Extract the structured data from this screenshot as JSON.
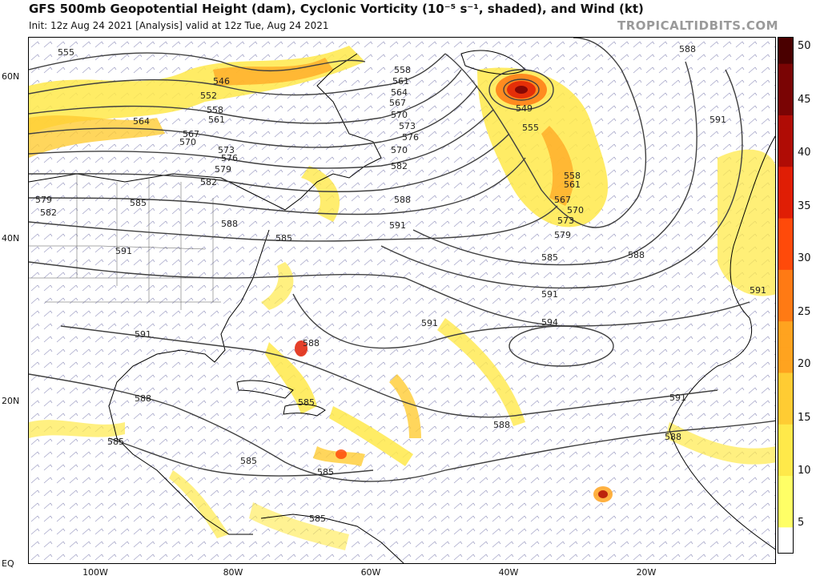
{
  "header": {
    "title": "GFS 500mb Geopotential Height (dam), Cyclonic Vorticity (10⁻⁵ s⁻¹, shaded), and Wind (kt)",
    "subtitle": "Init: 12z Aug 24 2021   [Analysis]   valid at 12z Tue, Aug 24 2021",
    "watermark": "TROPICALTIDBITS.COM"
  },
  "map": {
    "lat_labels": [
      "60N",
      "40N",
      "20N",
      "EQ"
    ],
    "lon_labels": [
      "100W",
      "80W",
      "60W",
      "40W",
      "20W"
    ],
    "contour_color": "#404040",
    "coast_color": "#000000",
    "wind_barb_color": "#3b3b8f",
    "contour_labels": [
      {
        "text": "555",
        "region": "northwest"
      },
      {
        "text": "546",
        "region": "northwest"
      },
      {
        "text": "552",
        "region": "northwest"
      },
      {
        "text": "558",
        "region": "northwest"
      },
      {
        "text": "561",
        "region": "northwest"
      },
      {
        "text": "564",
        "region": "northwest"
      },
      {
        "text": "567",
        "region": "northwest"
      },
      {
        "text": "570",
        "region": "northwest"
      },
      {
        "text": "573",
        "region": "northwest"
      },
      {
        "text": "576",
        "region": "northwest"
      },
      {
        "text": "579",
        "region": "northwest"
      },
      {
        "text": "582",
        "region": "northwest"
      },
      {
        "text": "585",
        "region": "north-central US"
      },
      {
        "text": "588",
        "region": "Great Lakes"
      },
      {
        "text": "579",
        "region": "west"
      },
      {
        "text": "582",
        "region": "west"
      },
      {
        "text": "591",
        "region": "Gulf"
      },
      {
        "text": "585",
        "region": "Mid-Atlantic"
      },
      {
        "text": "558",
        "region": "Newfoundland"
      },
      {
        "text": "561",
        "region": "Newfoundland"
      },
      {
        "text": "564",
        "region": "Newfoundland"
      },
      {
        "text": "567",
        "region": "Newfoundland"
      },
      {
        "text": "570",
        "region": "Newfoundland"
      },
      {
        "text": "573",
        "region": "Newfoundland"
      },
      {
        "text": "576",
        "region": "Newfoundland"
      },
      {
        "text": "570",
        "region": "Newfoundland"
      },
      {
        "text": "582",
        "region": "Newfoundland"
      },
      {
        "text": "588",
        "region": "central Atlantic"
      },
      {
        "text": "591",
        "region": "central Atlantic"
      },
      {
        "text": "549",
        "region": "low center"
      },
      {
        "text": "555",
        "region": "low"
      },
      {
        "text": "558",
        "region": "low trough"
      },
      {
        "text": "561",
        "region": "low trough"
      },
      {
        "text": "567",
        "region": "low trough"
      },
      {
        "text": "570",
        "region": "low trough"
      },
      {
        "text": "573",
        "region": "low trough"
      },
      {
        "text": "579",
        "region": "low trough"
      },
      {
        "text": "585",
        "region": "low trough"
      },
      {
        "text": "588",
        "region": "east Atlantic"
      },
      {
        "text": "591",
        "region": "subtropical ridge"
      },
      {
        "text": "591",
        "region": "subtropical ridge"
      },
      {
        "text": "594",
        "region": "ridge center"
      },
      {
        "text": "588",
        "region": "Bahamas"
      },
      {
        "text": "585",
        "region": "Hispaniola"
      },
      {
        "text": "588",
        "region": "tropical Atlantic"
      },
      {
        "text": "588",
        "region": "Africa"
      },
      {
        "text": "591",
        "region": "Africa"
      },
      {
        "text": "591",
        "region": "Iberia"
      },
      {
        "text": "591",
        "region": "Europe"
      },
      {
        "text": "588",
        "region": "northeast"
      },
      {
        "text": "591",
        "region": "Mexico"
      },
      {
        "text": "588",
        "region": "Gulf of Mexico"
      },
      {
        "text": "585",
        "region": "Central America"
      },
      {
        "text": "585",
        "region": "Caribbean"
      },
      {
        "text": "585",
        "region": "Caribbean"
      },
      {
        "text": "585",
        "region": "South America"
      }
    ]
  },
  "colorbar": {
    "labels": [
      "50",
      "45",
      "40",
      "35",
      "30",
      "25",
      "20",
      "15",
      "10",
      "5"
    ],
    "colors": [
      "#ffffff",
      "#ffff66",
      "#ffe94a",
      "#ffcc33",
      "#ffa31f",
      "#ff7a14",
      "#ff4a0a",
      "#e01e05",
      "#b00c05",
      "#7a0404",
      "#4a0000"
    ]
  }
}
